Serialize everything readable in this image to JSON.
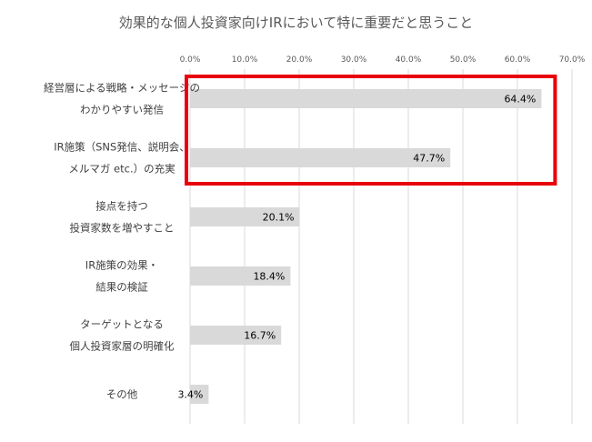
{
  "chart_data": {
    "type": "bar",
    "orientation": "horizontal",
    "title": "効果的な個人投資家向けIRにおいて特に重要だと思うこと",
    "categories": [
      [
        "経営層による戦略・メッセージの",
        "わかりやすい発信"
      ],
      [
        "IR施策（SNS発信、説明会、",
        "メルマガ etc.）の充実"
      ],
      [
        "接点を持つ",
        "投資家数を増やすこと"
      ],
      [
        "IR施策の効果・",
        "結果の検証"
      ],
      [
        "ターゲットとなる",
        "個人投資家層の明確化"
      ],
      [
        "その他"
      ]
    ],
    "values": [
      64.4,
      47.7,
      20.1,
      18.4,
      16.7,
      3.4
    ],
    "data_labels": [
      "64.4%",
      "47.7%",
      "20.1%",
      "18.4%",
      "16.7%",
      "3.4%"
    ],
    "xlim": [
      0,
      70
    ],
    "xticks": [
      0,
      10,
      20,
      30,
      40,
      50,
      60,
      70
    ],
    "xtick_labels": [
      "0.0%",
      "10.0%",
      "20.0%",
      "30.0%",
      "40.0%",
      "50.0%",
      "60.0%",
      "70.0%"
    ],
    "xaxis_position": "top",
    "grid": true,
    "bar_color": "#d9d9d9",
    "grid_color": "#d9d9d9",
    "highlight": {
      "categories": [
        0,
        1
      ],
      "color": "#e8000b"
    }
  }
}
